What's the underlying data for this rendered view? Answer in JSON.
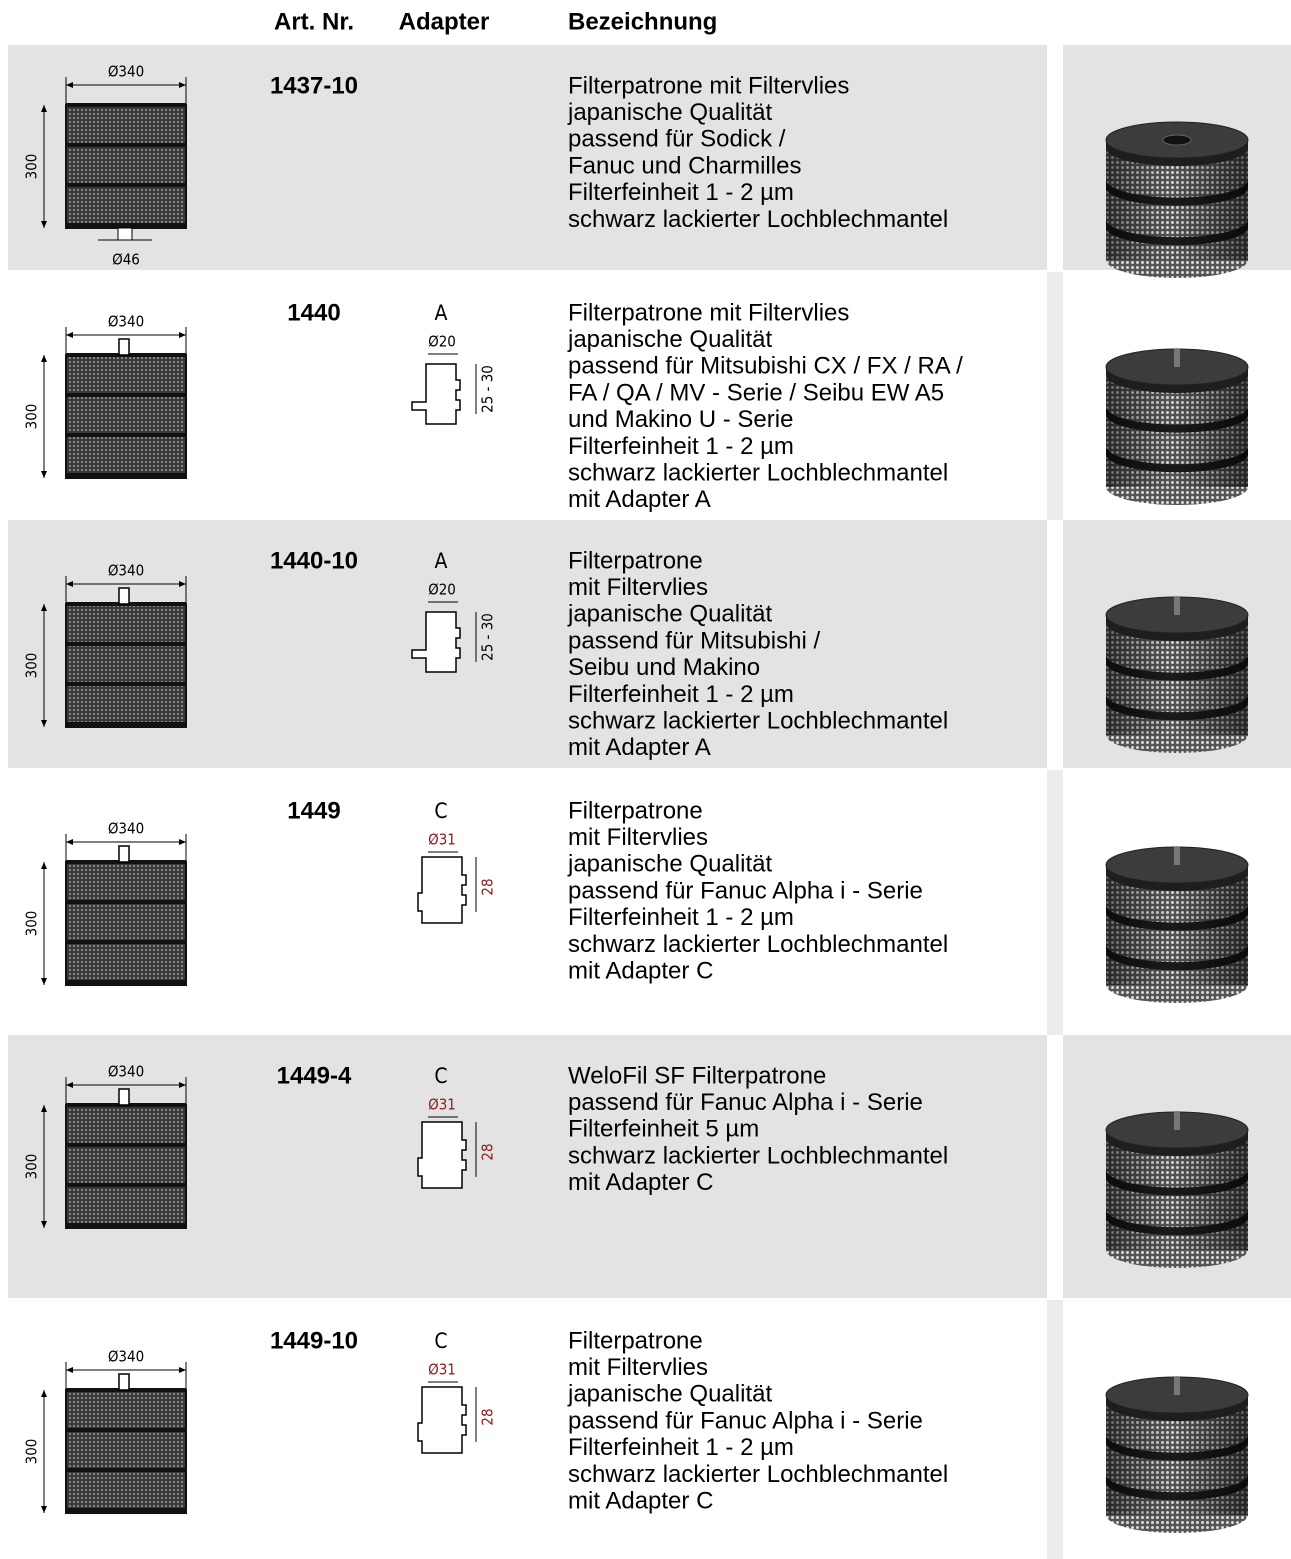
{
  "header": {
    "columns": [
      "Art. Nr.",
      "Adapter",
      "Bezeichnung"
    ]
  },
  "rows": [
    {
      "art_nr": "1437-10",
      "drawing": {
        "diameter": "Ø340",
        "height": "300",
        "outlet": "Ø46"
      },
      "description": [
        "Filterpatrone mit Filtervlies",
        "japanische Qualität",
        "passend für Sodick /",
        "Fanuc und Charmilles",
        "Filterfeinheit 1 - 2 µm",
        "schwarz lackierter Lochblechmantel"
      ]
    },
    {
      "art_nr": "1440",
      "adapter": "A",
      "drawing": {
        "diameter": "Ø340",
        "height": "300"
      },
      "adapter_drawing": {
        "diameter": "Ø20",
        "length": "25 - 30"
      },
      "description": [
        "Filterpatrone mit Filtervlies",
        "japanische Qualität",
        "passend für Mitsubishi CX / FX / RA /",
        "FA / QA / MV - Serie / Seibu EW A5",
        "und Makino U - Serie",
        "Filterfeinheit 1 - 2 µm",
        "schwarz lackierter Lochblechmantel",
        "mit Adapter A"
      ]
    },
    {
      "art_nr": "1440-10",
      "adapter": "A",
      "drawing": {
        "diameter": "Ø340",
        "height": "300"
      },
      "adapter_drawing": {
        "diameter": "Ø20",
        "length": "25 - 30"
      },
      "description": [
        "Filterpatrone",
        "mit Filtervlies",
        "japanische Qualität",
        "passend für Mitsubishi /",
        "Seibu und Makino",
        "Filterfeinheit 1 - 2 µm",
        "schwarz lackierter Lochblechmantel",
        "mit Adapter A"
      ]
    },
    {
      "art_nr": "1449",
      "adapter": "C",
      "drawing": {
        "diameter": "Ø340",
        "height": "300"
      },
      "adapter_drawing": {
        "diameter": "Ø31",
        "length": "28"
      },
      "description": [
        "Filterpatrone",
        "mit Filtervlies",
        "japanische Qualität",
        "passend für Fanuc Alpha i - Serie",
        "Filterfeinheit 1 - 2 µm",
        "schwarz lackierter Lochblechmantel",
        "mit Adapter C"
      ]
    },
    {
      "art_nr": "1449-4",
      "adapter": "C",
      "drawing": {
        "diameter": "Ø340",
        "height": "300"
      },
      "adapter_drawing": {
        "diameter": "Ø31",
        "length": "28"
      },
      "description": [
        "WeloFil SF Filterpatrone",
        "passend für Fanuc Alpha i - Serie",
        "Filterfeinheit 5 µm",
        "schwarz lackierter Lochblechmantel",
        "mit Adapter C"
      ]
    },
    {
      "art_nr": "1449-10",
      "adapter": "C",
      "drawing": {
        "diameter": "Ø340",
        "height": "300"
      },
      "adapter_drawing": {
        "diameter": "Ø31",
        "length": "28"
      },
      "description": [
        "Filterpatrone",
        "mit Filtervlies",
        "japanische Qualität",
        "passend für Fanuc Alpha i - Serie",
        "Filterfeinheit 1 - 2 µm",
        "schwarz lackierter Lochblechmantel",
        "mit Adapter C"
      ]
    }
  ]
}
